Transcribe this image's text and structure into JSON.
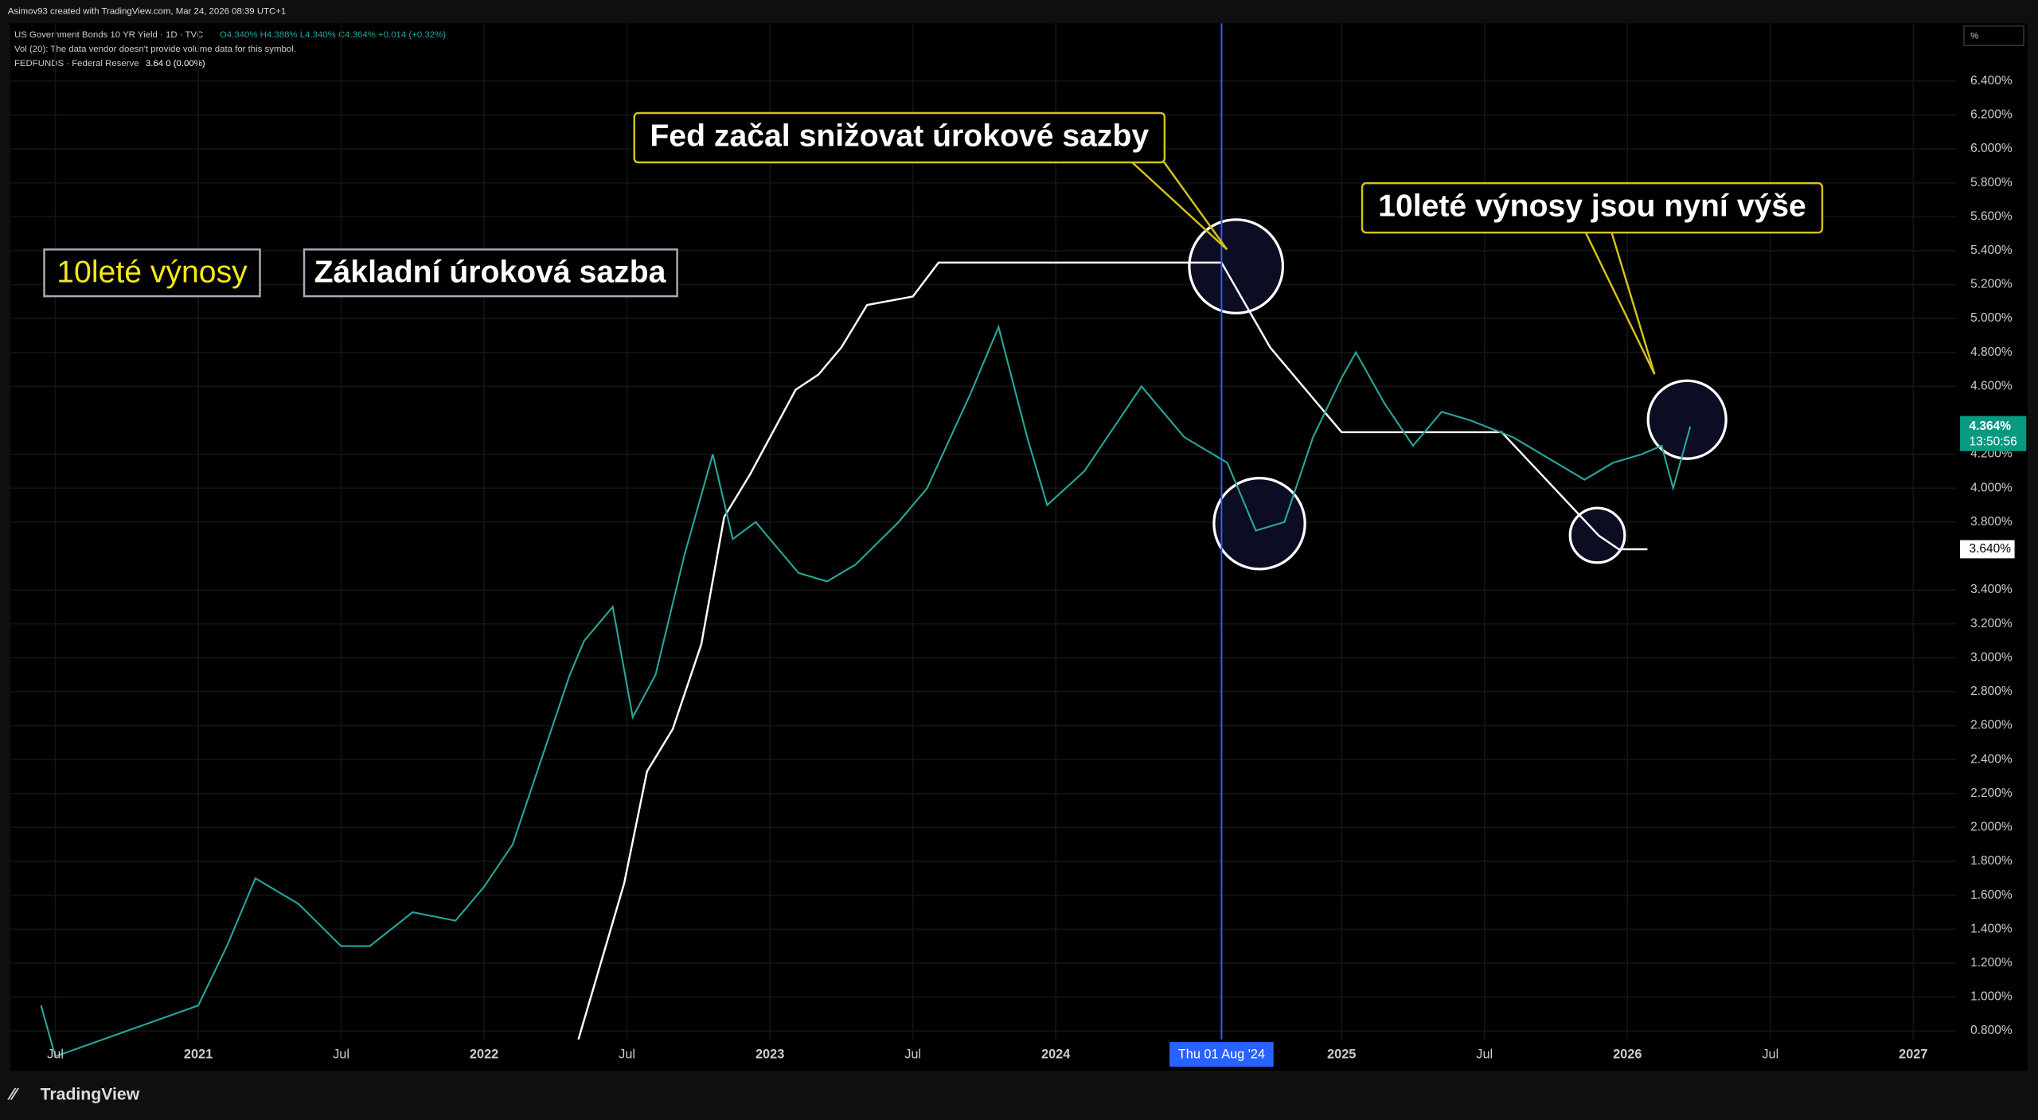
{
  "header": {
    "credit": "Asimov93 created with TradingView.com, Mar 24, 2026 08:39 UTC+1",
    "symbol": "US Government Bonds 10 YR Yield · 1D · TVC",
    "ohlc": "O4.340% H4.388% L4.340% C4.364% +0.014 (+0.32%)",
    "volume": "Vol (20): The data vendor doesn't provide volume data for this symbol.",
    "fedfunds": "FEDFUNDS · Federal Reserve",
    "fedfunds_values": "3.64 0 (0.00%)"
  },
  "footer": {
    "brand": "TradingView"
  },
  "chart_data": {
    "type": "line",
    "annotations": [
      "Fed začal snižovat úrokové sazby",
      "10leté výnosy jsou nyní výše"
    ],
    "unit_label": "%",
    "xlim": [
      2020.35,
      2027.15
    ],
    "ylim": [
      0.75,
      6.74
    ],
    "xticks": [
      {
        "value": 2020.5,
        "label": "Jul"
      },
      2021,
      {
        "value": 2021.5,
        "label": "Jul"
      },
      2022,
      {
        "value": 2022.5,
        "label": "Jul"
      },
      2023,
      {
        "value": 2023.5,
        "label": "Jul"
      },
      2024,
      2025,
      {
        "value": 2025.5,
        "label": "Jul"
      },
      2026,
      {
        "value": 2026.5,
        "label": "Jul"
      },
      2027
    ],
    "yticks": [
      {
        "value": 0.8,
        "label": "0.800%"
      },
      {
        "value": 1.0,
        "label": "1.000%"
      },
      {
        "value": 1.2,
        "label": "1.200%"
      },
      {
        "value": 1.4,
        "label": "1.400%"
      },
      {
        "value": 1.6,
        "label": "1.600%"
      },
      {
        "value": 1.8,
        "label": "1.800%"
      },
      {
        "value": 2.0,
        "label": "2.000%"
      },
      {
        "value": 2.2,
        "label": "2.200%"
      },
      {
        "value": 2.4,
        "label": "2.400%"
      },
      {
        "value": 2.6,
        "label": "2.600%"
      },
      {
        "value": 2.8,
        "label": "2.800%"
      },
      {
        "value": 3.0,
        "label": "3.000%"
      },
      {
        "value": 3.2,
        "label": "3.200%"
      },
      {
        "value": 3.4,
        "label": "3.400%"
      },
      {
        "value": 3.8,
        "label": "3.800%"
      },
      {
        "value": 4.0,
        "label": "4.000%"
      },
      {
        "value": 4.2,
        "label": "4.200%"
      },
      {
        "value": 4.6,
        "label": "4.600%"
      },
      {
        "value": 4.8,
        "label": "4.800%"
      },
      {
        "value": 5.0,
        "label": "5.000%"
      },
      {
        "value": 5.2,
        "label": "5.200%"
      },
      {
        "value": 5.4,
        "label": "5.400%"
      },
      {
        "value": 5.6,
        "label": "5.600%"
      },
      {
        "value": 5.8,
        "label": "5.800%"
      },
      {
        "value": 6.0,
        "label": "6.000%"
      },
      {
        "value": 6.2,
        "label": "6.200%"
      },
      {
        "value": 6.4,
        "label": "6.400%"
      }
    ],
    "grid": true,
    "crosshair": {
      "x": 2024.58,
      "label": "Thu 01 Aug '24"
    },
    "series": [
      {
        "name": "10leté výnosy",
        "color": "#26a69a",
        "x": [
          2020.45,
          2020.5,
          2020.75,
          2021.0,
          2021.1,
          2021.2,
          2021.35,
          2021.5,
          2021.6,
          2021.75,
          2021.9,
          2022.0,
          2022.1,
          2022.2,
          2022.3,
          2022.35,
          2022.45,
          2022.52,
          2022.6,
          2022.7,
          2022.8,
          2022.87,
          2022.95,
          2023.1,
          2023.2,
          2023.3,
          2023.45,
          2023.55,
          2023.7,
          2023.8,
          2023.9,
          2023.97,
          2024.1,
          2024.3,
          2024.45,
          2024.6,
          2024.7,
          2024.8,
          2024.9,
          2025.0,
          2025.05,
          2025.15,
          2025.25,
          2025.35,
          2025.45,
          2025.6,
          2025.75,
          2025.85,
          2025.95,
          2026.05,
          2026.12,
          2026.16,
          2026.22
        ],
        "values": [
          0.95,
          0.65,
          0.8,
          0.95,
          1.3,
          1.7,
          1.55,
          1.3,
          1.3,
          1.5,
          1.45,
          1.65,
          1.9,
          2.4,
          2.9,
          3.1,
          3.3,
          2.65,
          2.9,
          3.6,
          4.2,
          3.7,
          3.8,
          3.5,
          3.45,
          3.55,
          3.8,
          4.0,
          4.55,
          4.95,
          4.3,
          3.9,
          4.1,
          4.6,
          4.3,
          4.15,
          3.75,
          3.8,
          4.3,
          4.65,
          4.8,
          4.5,
          4.25,
          4.45,
          4.4,
          4.3,
          4.15,
          4.05,
          4.15,
          4.2,
          4.25,
          4.0,
          4.364
        ],
        "last_label": "4.364%",
        "countdown": "13:50:56"
      },
      {
        "name": "Základní úroková sazba",
        "color": "#ffffff",
        "x": [
          2022.33,
          2022.49,
          2022.57,
          2022.66,
          2022.76,
          2022.84,
          2022.93,
          2023.09,
          2023.17,
          2023.25,
          2023.34,
          2023.5,
          2023.59,
          2024.58,
          2024.75,
          2025.0,
          2025.56,
          2025.9,
          2025.97,
          2026.07
        ],
        "values": [
          0.75,
          1.67,
          2.33,
          2.58,
          3.08,
          3.83,
          4.08,
          4.58,
          4.67,
          4.83,
          5.08,
          5.13,
          5.33,
          5.33,
          4.83,
          4.33,
          4.33,
          3.72,
          3.64,
          3.64
        ],
        "last_label": "3.640%"
      }
    ]
  }
}
